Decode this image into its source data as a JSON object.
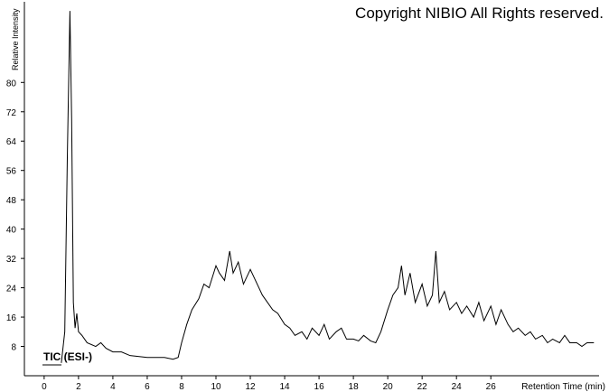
{
  "chart_data": {
    "type": "line",
    "annotations": [
      "Copyright NIBIO All Rights reserved.",
      "TIC (ESI-)"
    ],
    "y_label": "Relative Intensity",
    "x_label": "Retention Time (min)",
    "xlim": [
      -1.15,
      32.3
    ],
    "ylim": [
      0,
      102
    ],
    "xticks": [
      0,
      2,
      4,
      6,
      8,
      10,
      12,
      14,
      16,
      18,
      20,
      22,
      24,
      26
    ],
    "yticks": [
      8,
      16,
      24,
      32,
      40,
      48,
      56,
      64,
      72,
      80
    ],
    "color": "#000000",
    "x": [
      1.0,
      1.2,
      1.35,
      1.5,
      1.6,
      1.7,
      1.8,
      1.9,
      2.0,
      2.2,
      2.5,
      3.0,
      3.3,
      3.6,
      4.0,
      4.5,
      5.0,
      6.0,
      7.0,
      7.5,
      7.8,
      8.0,
      8.3,
      8.6,
      9.0,
      9.3,
      9.6,
      10.0,
      10.2,
      10.5,
      10.8,
      11.0,
      11.3,
      11.6,
      12.0,
      12.3,
      12.7,
      13.0,
      13.3,
      13.6,
      14.0,
      14.3,
      14.6,
      15.0,
      15.3,
      15.6,
      16.0,
      16.3,
      16.6,
      17.0,
      17.3,
      17.6,
      18.0,
      18.3,
      18.6,
      19.0,
      19.3,
      19.6,
      20.0,
      20.3,
      20.6,
      20.8,
      21.0,
      21.3,
      21.6,
      22.0,
      22.3,
      22.6,
      22.8,
      23.0,
      23.3,
      23.6,
      24.0,
      24.3,
      24.6,
      25.0,
      25.3,
      25.6,
      26.0,
      26.3,
      26.6,
      27.0,
      27.3,
      27.6,
      28.0,
      28.3,
      28.6,
      29.0,
      29.3,
      29.6,
      30.0,
      30.3,
      30.6,
      31.0,
      31.3,
      31.6,
      32.0
    ],
    "values": [
      3.5,
      12,
      60,
      99.5,
      70,
      20,
      13,
      17,
      12,
      11,
      9,
      8,
      9,
      7.5,
      6.5,
      6.5,
      5.5,
      5,
      5,
      4.5,
      5,
      9,
      14,
      18,
      21,
      25,
      24,
      30,
      28,
      26,
      34,
      28,
      31,
      25,
      29,
      26,
      22,
      20,
      18,
      17,
      14,
      13,
      11,
      12,
      10,
      13,
      11,
      14,
      10,
      12,
      13,
      10,
      10,
      9.5,
      11,
      9.5,
      9,
      12,
      18,
      22,
      24,
      30,
      22,
      28,
      20,
      25,
      19,
      22,
      34,
      20,
      23,
      18,
      20,
      17,
      19,
      16,
      20,
      15,
      19,
      14,
      18,
      14,
      12,
      13,
      11,
      12,
      10,
      11,
      9,
      10,
      9,
      11,
      9,
      9,
      8,
      9,
      9
    ]
  }
}
